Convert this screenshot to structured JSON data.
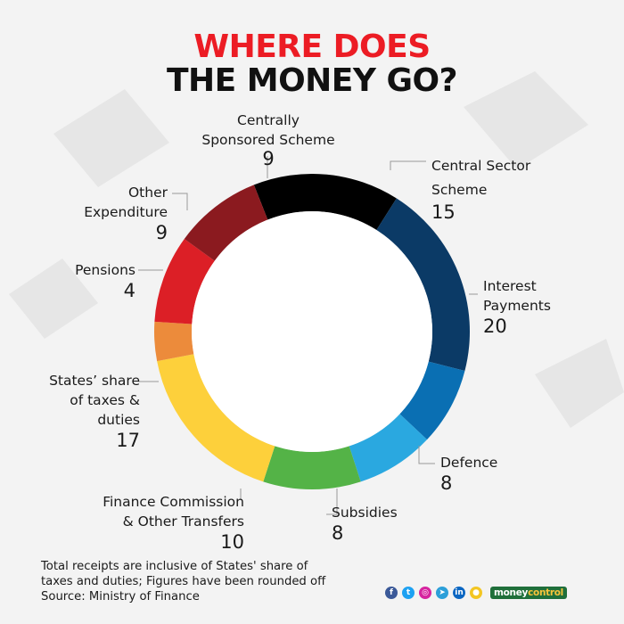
{
  "title_line1": "WHERE DOES",
  "title_line2": "THE MONEY GO?",
  "chart_data": {
    "type": "pie",
    "style": "donut",
    "title": "WHERE DOES THE MONEY GO?",
    "slices": [
      {
        "label": "Central Sector Scheme",
        "value": 15,
        "color": "#000000"
      },
      {
        "label": "Interest Payments",
        "value": 20,
        "color": "#0b3a66"
      },
      {
        "label": "Defence",
        "value": 8,
        "color": "#0a6fb3"
      },
      {
        "label": "Subsidies",
        "value": 8,
        "color": "#2aa8e0"
      },
      {
        "label": "Finance Commission & Other Transfers",
        "value": 10,
        "color": "#54b347"
      },
      {
        "label": "States’ share of taxes & duties",
        "value": 17,
        "color": "#fdd03b"
      },
      {
        "label": "Pensions",
        "value": 4,
        "color": "#ec8b3b"
      },
      {
        "label": "Other Expenditure",
        "value": 9,
        "color": "#dc1f26"
      },
      {
        "label": "Centrally Sponsored Scheme",
        "value": 9,
        "color": "#8b1a1f"
      }
    ]
  },
  "labels": {
    "central_sector": {
      "line1": "Central Sector",
      "line2": "Scheme",
      "value": "15"
    },
    "interest": {
      "line1": "Interest",
      "line2": "Payments",
      "value": "20"
    },
    "defence": {
      "line1": "Defence",
      "value": "8"
    },
    "subsidies": {
      "line1": "Subsidies",
      "value": "8"
    },
    "finance_commission": {
      "line1": "Finance Commission",
      "line2": "& Other Transfers",
      "value": "10"
    },
    "states_share": {
      "line1": "States’ share",
      "line2": "of taxes &",
      "line3": "duties",
      "value": "17"
    },
    "pensions": {
      "line1": "Pensions",
      "value": "4"
    },
    "other_expenditure": {
      "line1": "Other",
      "line2": "Expenditure",
      "value": "9"
    },
    "centrally_sponsored": {
      "line1": "Centrally",
      "line2": "Sponsored Scheme",
      "value": "9"
    }
  },
  "footnote": {
    "line1": "Total receipts are inclusive of States' share of",
    "line2": "taxes and duties; Figures have been rounded off",
    "line3": "Source: Ministry of Finance"
  },
  "brand": {
    "icons": [
      {
        "name": "facebook-icon",
        "glyph": "f",
        "color": "#3b5998"
      },
      {
        "name": "twitter-icon",
        "glyph": "t",
        "color": "#1da1f2"
      },
      {
        "name": "instagram-icon",
        "glyph": "◎",
        "color": "#d6249f"
      },
      {
        "name": "telegram-icon",
        "glyph": "➤",
        "color": "#2c9fd9"
      },
      {
        "name": "linkedin-icon",
        "glyph": "in",
        "color": "#0a66c2"
      },
      {
        "name": "koo-icon",
        "glyph": "●",
        "color": "#f3c623"
      }
    ],
    "logo_part1": "money",
    "logo_part2": "control"
  }
}
